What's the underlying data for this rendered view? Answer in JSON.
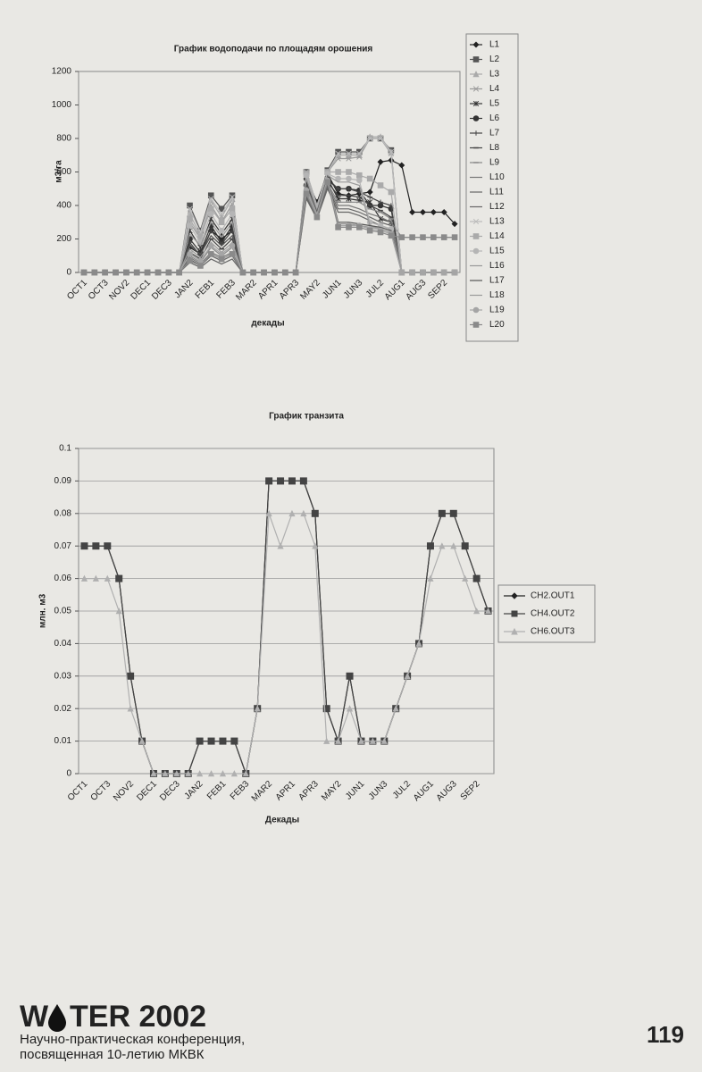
{
  "chart_data": [
    {
      "type": "line",
      "title": "График водоподачи по площадям орошения",
      "x_label": "декады",
      "y_label": "м3/га",
      "categories": [
        "OCT1",
        null,
        "OCT3",
        null,
        "NOV2",
        null,
        "DEC1",
        null,
        "DEC3",
        null,
        "JAN2",
        null,
        "FEB1",
        null,
        "FEB3",
        null,
        "MAR2",
        null,
        "APR1",
        null,
        "APR3",
        null,
        "MAY2",
        null,
        "JUN1",
        null,
        "JUN3",
        null,
        "JUL2",
        null,
        "AUG1",
        null,
        "AUG3",
        null,
        "SEP2",
        null
      ],
      "ylim": [
        0,
        1200
      ],
      "yticks": [
        0,
        200,
        400,
        600,
        800,
        1000,
        1200
      ],
      "grid": false,
      "series": [
        {
          "name": "L1",
          "color": "#222222",
          "marker": "diamond",
          "values": [
            0,
            0,
            0,
            0,
            0,
            0,
            0,
            0,
            0,
            0,
            150,
            110,
            250,
            200,
            250,
            0,
            0,
            0,
            0,
            0,
            0,
            560,
            420,
            590,
            470,
            460,
            470,
            480,
            660,
            670,
            640,
            360,
            360,
            360,
            360,
            290
          ]
        },
        {
          "name": "L2",
          "color": "#555555",
          "marker": "square",
          "values": [
            0,
            0,
            0,
            0,
            0,
            0,
            0,
            0,
            0,
            0,
            400,
            250,
            460,
            380,
            460,
            0,
            0,
            0,
            0,
            0,
            0,
            600,
            400,
            610,
            720,
            720,
            720,
            800,
            800,
            730,
            0,
            0,
            0,
            0,
            0,
            0
          ]
        },
        {
          "name": "L3",
          "color": "#aaaaaa",
          "marker": "triangle",
          "values": [
            0,
            0,
            0,
            0,
            0,
            0,
            0,
            0,
            0,
            0,
            350,
            220,
            430,
            330,
            440,
            0,
            0,
            0,
            0,
            0,
            0,
            590,
            380,
            600,
            700,
            700,
            700,
            810,
            810,
            720,
            0,
            0,
            0,
            0,
            0,
            0
          ]
        },
        {
          "name": "L4",
          "color": "#999999",
          "marker": "x",
          "values": [
            0,
            0,
            0,
            0,
            0,
            0,
            0,
            0,
            0,
            0,
            300,
            200,
            400,
            300,
            410,
            0,
            0,
            0,
            0,
            0,
            0,
            580,
            350,
            600,
            680,
            680,
            690,
            800,
            800,
            710,
            0,
            0,
            0,
            0,
            0,
            0
          ]
        },
        {
          "name": "L5",
          "color": "#333333",
          "marker": "star",
          "values": [
            0,
            0,
            0,
            0,
            0,
            0,
            0,
            0,
            0,
            0,
            250,
            150,
            320,
            230,
            320,
            0,
            0,
            0,
            0,
            0,
            0,
            540,
            380,
            560,
            440,
            440,
            430,
            420,
            320,
            300,
            0,
            0,
            0,
            0,
            0,
            0
          ]
        },
        {
          "name": "L6",
          "color": "#333333",
          "marker": "circle",
          "values": [
            0,
            0,
            0,
            0,
            0,
            0,
            0,
            0,
            0,
            0,
            200,
            120,
            280,
            180,
            280,
            0,
            0,
            0,
            0,
            0,
            0,
            520,
            390,
            560,
            500,
            500,
            490,
            400,
            400,
            380,
            0,
            0,
            0,
            0,
            0,
            0
          ]
        },
        {
          "name": "L7",
          "color": "#444444",
          "marker": "plus",
          "values": [
            0,
            0,
            0,
            0,
            0,
            0,
            0,
            0,
            0,
            0,
            180,
            100,
            250,
            170,
            250,
            0,
            0,
            0,
            0,
            0,
            0,
            500,
            370,
            550,
            500,
            500,
            480,
            450,
            420,
            400,
            0,
            0,
            0,
            0,
            0,
            0
          ]
        },
        {
          "name": "L8",
          "color": "#444444",
          "marker": "dash",
          "values": [
            0,
            0,
            0,
            0,
            0,
            0,
            0,
            0,
            0,
            0,
            120,
            80,
            200,
            140,
            200,
            0,
            0,
            0,
            0,
            0,
            0,
            480,
            360,
            540,
            460,
            460,
            450,
            400,
            370,
            330,
            0,
            0,
            0,
            0,
            0,
            0
          ]
        },
        {
          "name": "L9",
          "color": "#888888",
          "marker": "dash",
          "values": [
            0,
            0,
            0,
            0,
            0,
            0,
            0,
            0,
            0,
            0,
            100,
            60,
            150,
            100,
            150,
            0,
            0,
            0,
            0,
            0,
            0,
            470,
            350,
            530,
            420,
            420,
            420,
            380,
            360,
            320,
            0,
            0,
            0,
            0,
            0,
            0
          ]
        },
        {
          "name": "L10",
          "color": "#777777",
          "marker": "none",
          "values": [
            0,
            0,
            0,
            0,
            0,
            0,
            0,
            0,
            0,
            0,
            90,
            50,
            120,
            90,
            120,
            0,
            0,
            0,
            0,
            0,
            0,
            460,
            340,
            520,
            400,
            400,
            380,
            350,
            330,
            300,
            210,
            210,
            210,
            210,
            210,
            210
          ]
        },
        {
          "name": "L11",
          "color": "#666666",
          "marker": "none",
          "values": [
            0,
            0,
            0,
            0,
            0,
            0,
            0,
            0,
            0,
            0,
            80,
            40,
            100,
            70,
            100,
            0,
            0,
            0,
            0,
            0,
            0,
            450,
            330,
            510,
            380,
            380,
            360,
            330,
            300,
            280,
            0,
            0,
            0,
            0,
            0,
            0
          ]
        },
        {
          "name": "L12",
          "color": "#666666",
          "marker": "none",
          "values": [
            0,
            0,
            0,
            0,
            0,
            0,
            0,
            0,
            0,
            0,
            60,
            30,
            80,
            50,
            80,
            0,
            0,
            0,
            0,
            0,
            0,
            440,
            320,
            500,
            360,
            360,
            340,
            310,
            280,
            260,
            0,
            0,
            0,
            0,
            0,
            0
          ]
        },
        {
          "name": "L13",
          "color": "#bbbbbb",
          "marker": "x",
          "values": [
            0,
            0,
            0,
            0,
            0,
            0,
            0,
            0,
            0,
            0,
            380,
            240,
            440,
            350,
            450,
            0,
            0,
            0,
            0,
            0,
            0,
            600,
            400,
            600,
            710,
            710,
            710,
            800,
            800,
            720,
            0,
            0,
            0,
            0,
            0,
            0
          ]
        },
        {
          "name": "L14",
          "color": "#aaaaaa",
          "marker": "square",
          "values": [
            0,
            0,
            0,
            0,
            0,
            0,
            0,
            0,
            0,
            0,
            320,
            210,
            380,
            300,
            380,
            0,
            0,
            0,
            0,
            0,
            0,
            590,
            390,
            600,
            600,
            600,
            580,
            560,
            520,
            480,
            0,
            0,
            0,
            0,
            0,
            0
          ]
        },
        {
          "name": "L15",
          "color": "#b5b5b5",
          "marker": "circle",
          "values": [
            0,
            0,
            0,
            0,
            0,
            0,
            0,
            0,
            0,
            0,
            280,
            180,
            350,
            250,
            350,
            0,
            0,
            0,
            0,
            0,
            0,
            580,
            380,
            590,
            560,
            560,
            550,
            300,
            280,
            260,
            0,
            0,
            0,
            0,
            0,
            0
          ]
        },
        {
          "name": "L16",
          "color": "#999999",
          "marker": "none",
          "values": [
            0,
            0,
            0,
            0,
            0,
            0,
            0,
            0,
            0,
            0,
            230,
            160,
            300,
            210,
            300,
            0,
            0,
            0,
            0,
            0,
            0,
            560,
            370,
            580,
            540,
            540,
            520,
            280,
            260,
            240,
            0,
            0,
            0,
            0,
            0,
            0
          ]
        },
        {
          "name": "L17",
          "color": "#555555",
          "marker": "none",
          "values": [
            0,
            0,
            0,
            0,
            0,
            0,
            0,
            0,
            0,
            0,
            160,
            110,
            220,
            160,
            220,
            0,
            0,
            0,
            0,
            0,
            0,
            530,
            360,
            570,
            300,
            300,
            290,
            280,
            270,
            250,
            0,
            0,
            0,
            0,
            0,
            0
          ]
        },
        {
          "name": "L18",
          "color": "#9a9a9a",
          "marker": "none",
          "values": [
            0,
            0,
            0,
            0,
            0,
            0,
            0,
            0,
            0,
            0,
            140,
            90,
            180,
            120,
            180,
            0,
            0,
            0,
            0,
            0,
            0,
            510,
            350,
            560,
            290,
            290,
            280,
            270,
            260,
            240,
            0,
            0,
            0,
            0,
            0,
            0
          ]
        },
        {
          "name": "L19",
          "color": "#a5a5a5",
          "marker": "circle",
          "values": [
            0,
            0,
            0,
            0,
            0,
            0,
            0,
            0,
            0,
            0,
            110,
            70,
            160,
            110,
            160,
            0,
            0,
            0,
            0,
            0,
            0,
            490,
            340,
            550,
            280,
            280,
            280,
            260,
            250,
            230,
            0,
            0,
            0,
            0,
            0,
            0
          ]
        },
        {
          "name": "L20",
          "color": "#8a8a8a",
          "marker": "square",
          "values": [
            0,
            0,
            0,
            0,
            0,
            0,
            0,
            0,
            0,
            0,
            70,
            40,
            110,
            80,
            110,
            0,
            0,
            0,
            0,
            0,
            0,
            470,
            330,
            540,
            270,
            270,
            270,
            250,
            240,
            220,
            210,
            210,
            210,
            210,
            210,
            210
          ]
        }
      ]
    },
    {
      "type": "line",
      "title": "График транзита",
      "x_label": "Декады",
      "y_label": "млн. м3",
      "categories": [
        "OCT1",
        null,
        "OCT3",
        null,
        "NOV2",
        null,
        "DEC1",
        null,
        "DEC3",
        null,
        "JAN2",
        null,
        "FEB1",
        null,
        "FEB3",
        null,
        "MAR2",
        null,
        "APR1",
        null,
        "APR3",
        null,
        "MAY2",
        null,
        "JUN1",
        null,
        "JUN3",
        null,
        "JUL2",
        null,
        "AUG1",
        null,
        "AUG3",
        null,
        "SEP2",
        null
      ],
      "ylim": [
        0,
        0.1
      ],
      "yticks": [
        0,
        0.01,
        0.02,
        0.03,
        0.04,
        0.05,
        0.06,
        0.07,
        0.08,
        0.09,
        0.1
      ],
      "grid": true,
      "series": [
        {
          "name": "CH2.OUT1",
          "color": "#222222",
          "marker": "diamond",
          "values": [
            0.07,
            0.07,
            0.07,
            0.06,
            0.03,
            0.01,
            0,
            0,
            0,
            0,
            0.01,
            0.01,
            0.01,
            0.01,
            0,
            0.02,
            0.09,
            0.09,
            0.09,
            0.09,
            0.08,
            0.02,
            0.01,
            0.03,
            0.01,
            0.01,
            0.01,
            0.02,
            0.03,
            0.04,
            0.07,
            0.08,
            0.08,
            0.07,
            0.06,
            0.05
          ]
        },
        {
          "name": "CH4.OUT2",
          "color": "#444444",
          "marker": "square",
          "values": [
            0.07,
            0.07,
            0.07,
            0.06,
            0.03,
            0.01,
            0,
            0,
            0,
            0,
            0.01,
            0.01,
            0.01,
            0.01,
            0,
            0.02,
            0.09,
            0.09,
            0.09,
            0.09,
            0.08,
            0.02,
            0.01,
            0.03,
            0.01,
            0.01,
            0.01,
            0.02,
            0.03,
            0.04,
            0.07,
            0.08,
            0.08,
            0.07,
            0.06,
            0.05
          ]
        },
        {
          "name": "CH6.OUT3",
          "color": "#b0b0b0",
          "marker": "triangle",
          "values": [
            0.06,
            0.06,
            0.06,
            0.05,
            0.02,
            0.01,
            0,
            0,
            0,
            0,
            0,
            0,
            0,
            0,
            0,
            0.02,
            0.08,
            0.07,
            0.08,
            0.08,
            0.07,
            0.01,
            0.01,
            0.02,
            0.01,
            0.01,
            0.01,
            0.02,
            0.03,
            0.04,
            0.06,
            0.07,
            0.07,
            0.06,
            0.05,
            0.05
          ]
        }
      ]
    }
  ],
  "footer": {
    "logo_w": "W",
    "logo_rest": "TER 2002",
    "line1": "Научно-практическая конференция,",
    "line2": "посвященная 10-летию МКВК",
    "page_number": "119"
  }
}
